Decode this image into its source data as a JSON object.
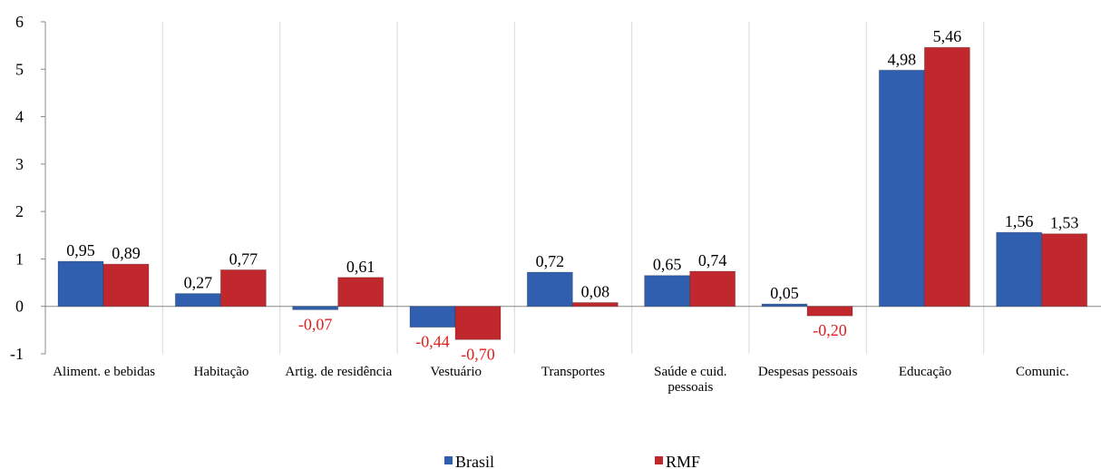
{
  "chart_data": {
    "type": "bar",
    "categories": [
      "Aliment. e bebidas",
      "Habitação",
      "Artig. de residência",
      "Vestuário",
      "Transportes",
      "Saúde e cuid. pessoais",
      "Despesas pessoais",
      "Educação",
      "Comunic."
    ],
    "series": [
      {
        "name": "Brasil",
        "color": "#2f5fae",
        "values": [
          0.95,
          0.27,
          -0.07,
          -0.44,
          0.72,
          0.65,
          0.05,
          4.98,
          1.56
        ],
        "value_labels": [
          "0,95",
          "0,27",
          "-0,07",
          "-0,44",
          "0,72",
          "0,65",
          "0,05",
          "4,98",
          "1,56"
        ]
      },
      {
        "name": "RMF",
        "color": "#c0282d",
        "values": [
          0.89,
          0.77,
          0.61,
          -0.7,
          0.08,
          0.74,
          -0.2,
          5.46,
          1.53
        ],
        "value_labels": [
          "0,89",
          "0,77",
          "0,61",
          "-0,70",
          "0,08",
          "0,74",
          "-0,20",
          "5,46",
          "1,53"
        ]
      }
    ],
    "ylim": [
      -1,
      6
    ],
    "yticks": [
      -1,
      0,
      1,
      2,
      3,
      4,
      5,
      6
    ],
    "legend": "bottom"
  }
}
